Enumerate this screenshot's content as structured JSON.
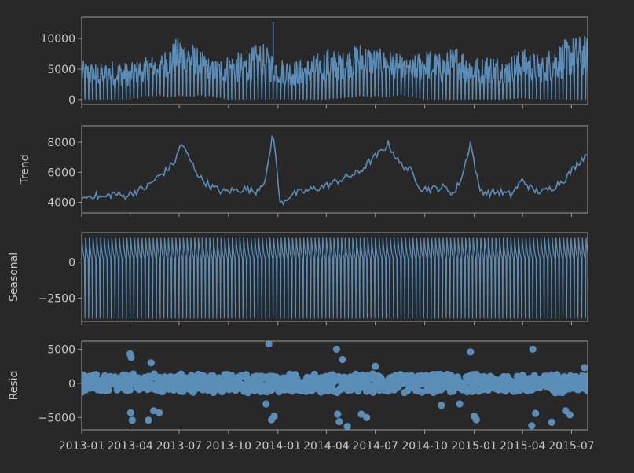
{
  "figure": {
    "background": "#282828",
    "axes_color": "#9a9a9a",
    "text_color": "#c8c8c8",
    "line_color": "#5a8eb8"
  },
  "x_axis": {
    "start": "2013-01-01",
    "end": "2015-07-31",
    "ticks": [
      {
        "date": "2013-01-01",
        "label": "2013-01"
      },
      {
        "date": "2013-04-01",
        "label": "2013-04"
      },
      {
        "date": "2013-07-01",
        "label": "2013-07"
      },
      {
        "date": "2013-10-01",
        "label": "2013-10"
      },
      {
        "date": "2014-01-01",
        "label": "2014-01"
      },
      {
        "date": "2014-04-01",
        "label": "2014-04"
      },
      {
        "date": "2014-07-01",
        "label": "2014-07"
      },
      {
        "date": "2014-10-01",
        "label": "2014-10"
      },
      {
        "date": "2015-01-01",
        "label": "2015-01"
      },
      {
        "date": "2015-04-01",
        "label": "2015-04"
      },
      {
        "date": "2015-07-01",
        "label": "2015-07"
      }
    ]
  },
  "chart_data": [
    {
      "type": "line",
      "panel": "observed",
      "ylabel": "",
      "ylim": [
        -800,
        13500
      ],
      "yticks": [
        {
          "value": 0,
          "label": "0"
        },
        {
          "value": 5000,
          "label": "5000"
        },
        {
          "value": 10000,
          "label": "10000"
        }
      ],
      "x": [
        "2013-01-01",
        "2013-02-01",
        "2013-03-01",
        "2013-04-01",
        "2013-05-01",
        "2013-06-01",
        "2013-07-01",
        "2013-08-01",
        "2013-09-01",
        "2013-10-01",
        "2013-11-01",
        "2013-12-01",
        "2014-01-01",
        "2014-02-01",
        "2014-03-01",
        "2014-04-01",
        "2014-05-01",
        "2014-06-01",
        "2014-07-01",
        "2014-08-01",
        "2014-09-01",
        "2014-10-01",
        "2014-11-01",
        "2014-12-01",
        "2015-01-01",
        "2015-02-01",
        "2015-03-01",
        "2015-04-01",
        "2015-05-01",
        "2015-06-01",
        "2015-07-01"
      ],
      "y_high": [
        6500,
        6000,
        6500,
        6000,
        7000,
        8000,
        10500,
        9000,
        6500,
        7500,
        8000,
        9500,
        7000,
        6500,
        7000,
        8500,
        8000,
        9500,
        8500,
        8000,
        6500,
        8500,
        7500,
        9000,
        7000,
        7500,
        7000,
        8500,
        7500,
        9000,
        10500
      ],
      "y_low": [
        0,
        0,
        0,
        0,
        1000,
        1000,
        1000,
        1000,
        1000,
        0,
        0,
        0,
        0,
        0,
        0,
        0,
        500,
        1000,
        1000,
        1000,
        1000,
        0,
        0,
        0,
        0,
        0,
        0,
        500,
        0,
        0,
        0
      ],
      "spikes": [
        {
          "x": "2013-12-23",
          "y": 12800
        }
      ]
    },
    {
      "type": "line",
      "panel": "trend",
      "ylabel": "Trend",
      "ylim": [
        3300,
        9100
      ],
      "yticks": [
        {
          "value": 4000,
          "label": "4000"
        },
        {
          "value": 6000,
          "label": "6000"
        },
        {
          "value": 8000,
          "label": "8000"
        }
      ],
      "x": [
        "2013-01-01",
        "2013-01-20",
        "2013-02-10",
        "2013-03-01",
        "2013-03-20",
        "2013-04-10",
        "2013-05-01",
        "2013-05-20",
        "2013-06-10",
        "2013-06-25",
        "2013-07-05",
        "2013-07-20",
        "2013-08-10",
        "2013-09-01",
        "2013-09-20",
        "2013-10-10",
        "2013-11-01",
        "2013-11-20",
        "2013-12-10",
        "2013-12-23",
        "2014-01-05",
        "2014-01-25",
        "2014-02-15",
        "2014-03-10",
        "2014-04-01",
        "2014-04-20",
        "2014-05-10",
        "2014-06-01",
        "2014-06-20",
        "2014-07-10",
        "2014-07-25",
        "2014-08-15",
        "2014-09-05",
        "2014-09-25",
        "2014-10-15",
        "2014-11-05",
        "2014-11-25",
        "2014-12-10",
        "2014-12-25",
        "2015-01-10",
        "2015-01-25",
        "2015-02-15",
        "2015-03-10",
        "2015-04-01",
        "2015-04-20",
        "2015-05-10",
        "2015-06-01",
        "2015-06-20",
        "2015-07-10",
        "2015-07-31"
      ],
      "y": [
        4200,
        4500,
        4300,
        4600,
        4400,
        4700,
        5000,
        5600,
        6200,
        6800,
        8000,
        6900,
        5600,
        5000,
        4700,
        4800,
        4900,
        4700,
        5600,
        8800,
        3900,
        4500,
        4700,
        4900,
        5100,
        5400,
        5700,
        6000,
        6700,
        7300,
        7900,
        6600,
        6100,
        4900,
        4900,
        5000,
        4600,
        5800,
        8000,
        4900,
        4600,
        4700,
        4500,
        5500,
        4800,
        4700,
        5100,
        5600,
        6500,
        7300
      ]
    },
    {
      "type": "line",
      "panel": "seasonal",
      "ylabel": "Seasonal",
      "ylim": [
        -4100,
        2050
      ],
      "yticks": [
        {
          "value": -2500,
          "label": "−2500"
        },
        {
          "value": 0,
          "label": "0"
        }
      ],
      "period_days": 7,
      "pattern": [
        1700,
        1300,
        900,
        600,
        400,
        300,
        -3900
      ]
    },
    {
      "type": "scatter",
      "panel": "resid",
      "ylabel": "Resid",
      "ylim": [
        -6800,
        6200
      ],
      "yticks": [
        {
          "value": -5000,
          "label": "−5000"
        },
        {
          "value": 0,
          "label": "0"
        },
        {
          "value": 5000,
          "label": "5000"
        }
      ],
      "band": 1500,
      "outliers": [
        {
          "x": "2013-04-01",
          "y": 4300
        },
        {
          "x": "2013-04-03",
          "y": 3800
        },
        {
          "x": "2013-04-02",
          "y": -4300
        },
        {
          "x": "2013-04-05",
          "y": -5400
        },
        {
          "x": "2013-05-10",
          "y": 3000
        },
        {
          "x": "2013-05-15",
          "y": -4000
        },
        {
          "x": "2013-05-25",
          "y": -4300
        },
        {
          "x": "2013-05-05",
          "y": -5400
        },
        {
          "x": "2013-12-15",
          "y": 5800
        },
        {
          "x": "2013-12-20",
          "y": -5300
        },
        {
          "x": "2013-12-10",
          "y": -3000
        },
        {
          "x": "2013-12-25",
          "y": -4800
        },
        {
          "x": "2014-04-20",
          "y": 5000
        },
        {
          "x": "2014-05-01",
          "y": 3500
        },
        {
          "x": "2014-04-22",
          "y": -4500
        },
        {
          "x": "2014-04-25",
          "y": -5600
        },
        {
          "x": "2014-05-10",
          "y": -6300
        },
        {
          "x": "2014-06-05",
          "y": -4500
        },
        {
          "x": "2014-06-15",
          "y": -5000
        },
        {
          "x": "2014-07-01",
          "y": 2500
        },
        {
          "x": "2014-11-01",
          "y": -3200
        },
        {
          "x": "2014-12-05",
          "y": -3000
        },
        {
          "x": "2014-12-25",
          "y": 4600
        },
        {
          "x": "2015-01-01",
          "y": -4800
        },
        {
          "x": "2015-01-05",
          "y": -5300
        },
        {
          "x": "2015-04-20",
          "y": 5000
        },
        {
          "x": "2015-04-25",
          "y": -4400
        },
        {
          "x": "2015-04-18",
          "y": -6200
        },
        {
          "x": "2015-05-25",
          "y": -5700
        },
        {
          "x": "2015-06-20",
          "y": -4000
        },
        {
          "x": "2015-06-28",
          "y": -4600
        },
        {
          "x": "2015-07-25",
          "y": 2300
        }
      ]
    }
  ]
}
